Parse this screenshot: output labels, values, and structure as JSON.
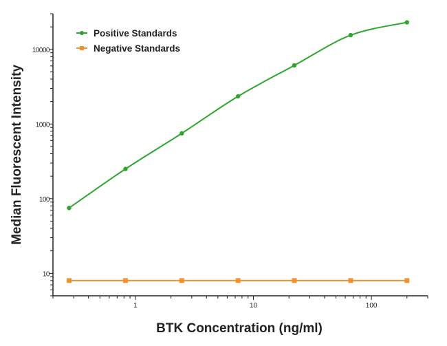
{
  "chart_data": {
    "type": "line",
    "title": "",
    "xlabel": "BTK Concentration (ng/ml)",
    "ylabel": "Median Fluorescent Intensity",
    "x_scale": "log",
    "y_scale": "log",
    "xlim": [
      0.2,
      300
    ],
    "ylim": [
      5,
      30000
    ],
    "x_ticks": [
      {
        "value": 1,
        "label": "1"
      },
      {
        "value": 10,
        "label": "10"
      },
      {
        "value": 100,
        "label": "100"
      }
    ],
    "y_ticks": [
      {
        "value": 10,
        "label": "10"
      },
      {
        "value": 100,
        "label": "100"
      },
      {
        "value": 1000,
        "label": "1000"
      },
      {
        "value": 10000,
        "label": "10000"
      }
    ],
    "grid": false,
    "legend_position": "top-left",
    "x": [
      0.274,
      0.823,
      2.47,
      7.41,
      22.2,
      66.7,
      200
    ],
    "series": [
      {
        "name": "Positive Standards",
        "color": "#2ea62e",
        "marker": "circle",
        "values": [
          75,
          250,
          750,
          2350,
          6100,
          15500,
          23000
        ]
      },
      {
        "name": "Negative Standards",
        "color": "#f0922e",
        "marker": "square",
        "values": [
          8,
          8,
          8,
          8,
          8,
          8,
          8
        ]
      }
    ]
  }
}
